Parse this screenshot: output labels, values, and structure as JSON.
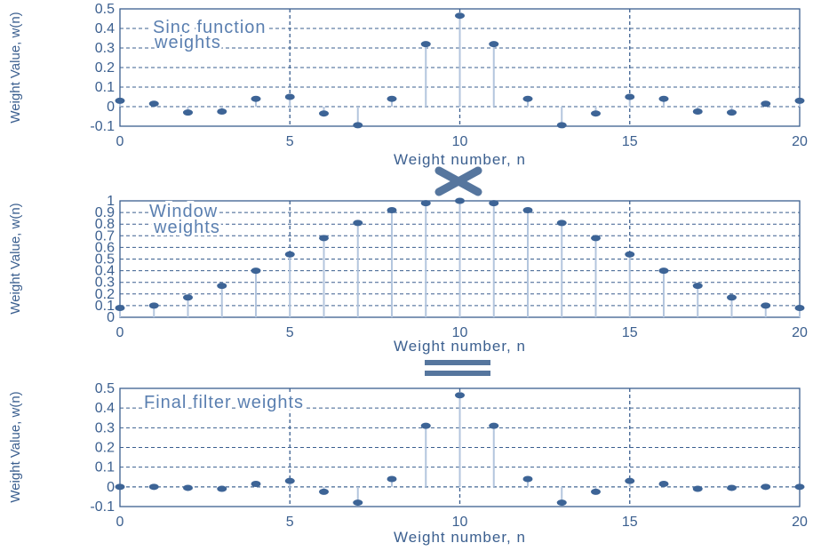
{
  "chart_data": [
    {
      "type": "stem",
      "title": "Sinc function weights",
      "title_lines": [
        "Sinc function",
        "weights"
      ],
      "xlabel": "Weight number, n",
      "ylabel": "Weight Value, w(n)",
      "xlim": [
        0,
        20
      ],
      "ylim": [
        -0.1,
        0.5
      ],
      "xticks": [
        "0",
        "5",
        "10",
        "15",
        "20"
      ],
      "yticks": [
        "0.5",
        "0.4",
        "0.3",
        "0.2",
        "0.1",
        "0",
        "-0.1"
      ],
      "grid": true,
      "x": [
        0,
        1,
        2,
        3,
        4,
        5,
        6,
        7,
        8,
        9,
        10,
        11,
        12,
        13,
        14,
        15,
        16,
        17,
        18,
        19,
        20
      ],
      "values": [
        0.03,
        0.015,
        -0.03,
        -0.025,
        0.04,
        0.05,
        -0.035,
        -0.095,
        0.04,
        0.32,
        0.465,
        0.32,
        0.04,
        -0.095,
        -0.035,
        0.05,
        0.04,
        -0.025,
        -0.03,
        0.015,
        0.03
      ]
    },
    {
      "type": "stem",
      "title": "Window weights",
      "title_lines": [
        "Window",
        "weights"
      ],
      "xlabel": "Weight number, n",
      "ylabel": "Weight Value, w(n)",
      "xlim": [
        0,
        20
      ],
      "ylim": [
        0,
        1
      ],
      "xticks": [
        "0",
        "5",
        "10",
        "15",
        "20"
      ],
      "yticks": [
        "1",
        "0.9",
        "0.8",
        "0.7",
        "0.6",
        "0.5",
        "0.4",
        "0.3",
        "0.2",
        "0.1",
        "0"
      ],
      "grid": true,
      "x": [
        0,
        1,
        2,
        3,
        4,
        5,
        6,
        7,
        8,
        9,
        10,
        11,
        12,
        13,
        14,
        15,
        16,
        17,
        18,
        19,
        20
      ],
      "values": [
        0.08,
        0.1,
        0.17,
        0.27,
        0.4,
        0.54,
        0.68,
        0.81,
        0.92,
        0.98,
        1.0,
        0.98,
        0.92,
        0.81,
        0.68,
        0.54,
        0.4,
        0.27,
        0.17,
        0.1,
        0.08
      ]
    },
    {
      "type": "stem",
      "title": "Final filter weights",
      "title_lines": [
        "Final filter weights"
      ],
      "xlabel": "Weight number, n",
      "ylabel": "Weight Value, w(n)",
      "xlim": [
        0,
        20
      ],
      "ylim": [
        -0.1,
        0.5
      ],
      "xticks": [
        "0",
        "5",
        "10",
        "15",
        "20"
      ],
      "yticks": [
        "0.5",
        "0.4",
        "0.3",
        "0.2",
        "0.1",
        "0",
        "-0.1"
      ],
      "grid": true,
      "x": [
        0,
        1,
        2,
        3,
        4,
        5,
        6,
        7,
        8,
        9,
        10,
        11,
        12,
        13,
        14,
        15,
        16,
        17,
        18,
        19,
        20
      ],
      "values": [
        0.0,
        0.0,
        -0.005,
        -0.01,
        0.015,
        0.03,
        -0.025,
        -0.08,
        0.04,
        0.31,
        0.465,
        0.31,
        0.04,
        -0.08,
        -0.025,
        0.03,
        0.015,
        -0.01,
        -0.005,
        0.0,
        0.0
      ]
    }
  ],
  "operators": {
    "multiply": "multiply-icon",
    "equals": "equals-icon"
  },
  "colors": {
    "axis": "#3b5f8f",
    "grid": "#3b5f8f",
    "stem": "#b4c6de",
    "marker": "#3d6496",
    "title": "#5a7fb0",
    "operator": "#56769e"
  }
}
